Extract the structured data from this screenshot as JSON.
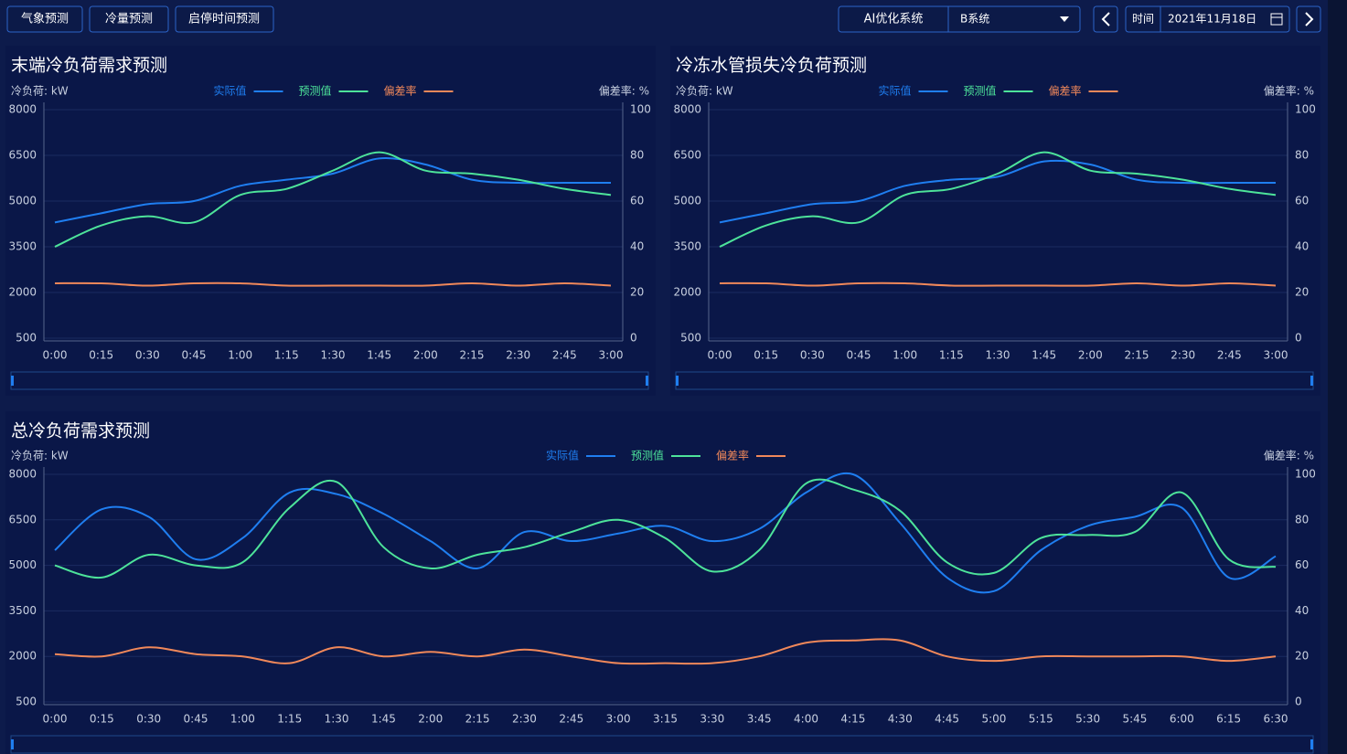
{
  "toolbar": {
    "buttons": [
      "气象预测",
      "冷量预测",
      "启停时间预测"
    ],
    "system_label": "AI优化系统",
    "system_value": "B系统",
    "date_label": "时间",
    "date_value": "2021年11月18日"
  },
  "chart_data": [
    {
      "type": "line",
      "title": "末端冷负荷需求预测",
      "y_label": "冷负荷: kW",
      "y2_label": "偏差率: %",
      "categories": [
        "0:00",
        "0:15",
        "0:30",
        "0:45",
        "1:00",
        "1:15",
        "1:30",
        "1:45",
        "2:00",
        "2:15",
        "2:30",
        "2:45",
        "3:00"
      ],
      "series": [
        {
          "name": "实际值",
          "color": "#1f7ef0",
          "values": [
            4300,
            4600,
            4900,
            5000,
            5500,
            5700,
            5900,
            6400,
            6200,
            5700,
            5600,
            5600,
            5600
          ]
        },
        {
          "name": "预测值",
          "color": "#4de39a",
          "values": [
            3500,
            4200,
            4500,
            4300,
            5200,
            5400,
            6000,
            6600,
            6000,
            5900,
            5700,
            5400,
            5200
          ]
        },
        {
          "name": "偏差率",
          "color": "#f0885a",
          "axis": "y2",
          "values": [
            24,
            24,
            23,
            24,
            24,
            23,
            23,
            23,
            23,
            24,
            23,
            24,
            23
          ]
        }
      ],
      "ylim": [
        500,
        8000
      ],
      "yticks": [
        500,
        2000,
        3500,
        5000,
        6500,
        8000
      ],
      "y2lim": [
        0,
        100
      ],
      "y2ticks": [
        0,
        20,
        40,
        60,
        80,
        100
      ],
      "grid": true
    },
    {
      "type": "line",
      "title": "冷冻水管损失冷负荷预测",
      "y_label": "冷负荷: kW",
      "y2_label": "偏差率: %",
      "categories": [
        "0:00",
        "0:15",
        "0:30",
        "0:45",
        "1:00",
        "1:15",
        "1:30",
        "1:45",
        "2:00",
        "2:15",
        "2:30",
        "2:45",
        "3:00"
      ],
      "series": [
        {
          "name": "实际值",
          "color": "#1f7ef0",
          "values": [
            4300,
            4600,
            4900,
            5000,
            5500,
            5700,
            5800,
            6300,
            6200,
            5700,
            5600,
            5600,
            5600
          ]
        },
        {
          "name": "预测值",
          "color": "#4de39a",
          "values": [
            3500,
            4200,
            4500,
            4300,
            5200,
            5400,
            5900,
            6600,
            6000,
            5900,
            5700,
            5400,
            5200
          ]
        },
        {
          "name": "偏差率",
          "color": "#f0885a",
          "axis": "y2",
          "values": [
            24,
            24,
            23,
            24,
            24,
            23,
            23,
            23,
            23,
            24,
            23,
            24,
            23
          ]
        }
      ],
      "ylim": [
        500,
        8000
      ],
      "yticks": [
        500,
        2000,
        3500,
        5000,
        6500,
        8000
      ],
      "y2lim": [
        0,
        100
      ],
      "y2ticks": [
        0,
        20,
        40,
        60,
        80,
        100
      ],
      "grid": true
    },
    {
      "type": "line",
      "title": "总冷负荷需求预测",
      "y_label": "冷负荷: kW",
      "y2_label": "偏差率: %",
      "categories": [
        "0:00",
        "0:15",
        "0:30",
        "0:45",
        "1:00",
        "1:15",
        "1:30",
        "1:45",
        "2:00",
        "2:15",
        "2:30",
        "2:45",
        "3:00",
        "3:15",
        "3:30",
        "3:45",
        "4:00",
        "4:15",
        "4:30",
        "4:45",
        "5:00",
        "5:15",
        "5:30",
        "5:45",
        "6:00",
        "6:15",
        "6:30"
      ],
      "series": [
        {
          "name": "实际值",
          "color": "#1f7ef0",
          "values": [
            5500,
            6850,
            6600,
            5200,
            5900,
            7400,
            7350,
            6700,
            5800,
            4900,
            6100,
            5800,
            6050,
            6300,
            5800,
            6200,
            7400,
            8000,
            6400,
            4600,
            4150,
            5500,
            6300,
            6600,
            6900,
            4600,
            5300
          ]
        },
        {
          "name": "预测值",
          "color": "#4de39a",
          "values": [
            5000,
            4600,
            5350,
            5000,
            5100,
            6900,
            7750,
            5600,
            4900,
            5350,
            5600,
            6100,
            6500,
            5900,
            4800,
            5500,
            7700,
            7500,
            6800,
            5100,
            4750,
            5900,
            6000,
            6100,
            7400,
            5200,
            4950
          ]
        },
        {
          "name": "偏差率",
          "color": "#f0885a",
          "axis": "y2",
          "values": [
            21,
            20,
            24,
            21,
            20,
            17,
            24,
            20,
            22,
            20,
            23,
            20,
            17,
            17,
            17,
            20,
            26,
            27,
            27,
            20,
            18,
            20,
            20,
            20,
            20,
            18,
            20
          ]
        }
      ],
      "ylim": [
        500,
        8000
      ],
      "yticks": [
        500,
        2000,
        3500,
        5000,
        6500,
        8000
      ],
      "y2lim": [
        0,
        100
      ],
      "y2ticks": [
        0,
        20,
        40,
        60,
        80,
        100
      ],
      "grid": true
    }
  ]
}
